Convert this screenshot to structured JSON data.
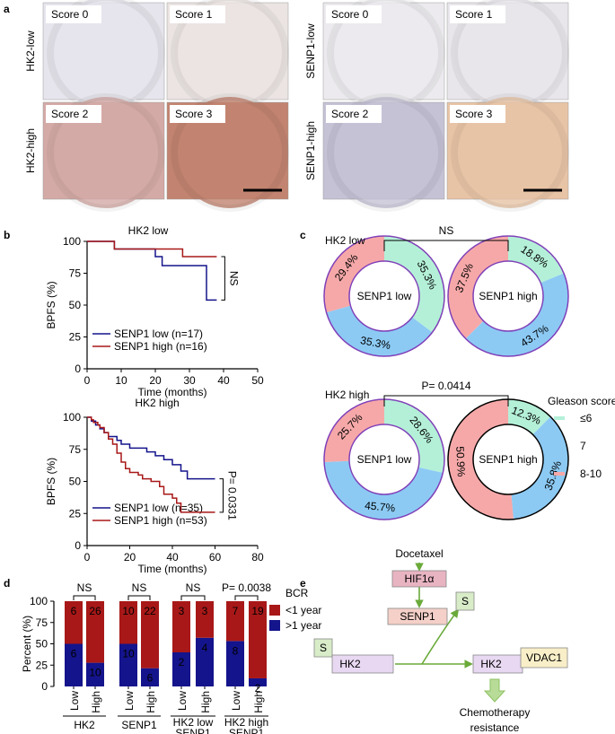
{
  "panel_labels": [
    "a",
    "b",
    "c",
    "d",
    "e"
  ],
  "panel_a": {
    "groups": [
      {
        "row_labels": [
          "HK2-low",
          "HK2-high"
        ],
        "tiles": [
          "Score 0",
          "Score 1",
          "Score 2",
          "Score 3"
        ]
      },
      {
        "row_labels": [
          "SENP1-low",
          "SENP1-high"
        ],
        "tiles": [
          "Score 0",
          "Score 1",
          "Score 2",
          "Score 3"
        ]
      }
    ]
  },
  "chart_data": [
    {
      "type": "line",
      "step": true,
      "title": "HK2 low",
      "x_label": "Time (months)",
      "y_label": "BPFS (%)",
      "xlim": [
        0,
        50
      ],
      "xticks": [
        0,
        10,
        20,
        30,
        40,
        50
      ],
      "ylim": [
        0,
        100
      ],
      "yticks": [
        0,
        25,
        50,
        75,
        100
      ],
      "annotation": "NS",
      "series": [
        {
          "name": "SENP1 low (n=17)",
          "color": "#14148c",
          "x": [
            0,
            8,
            20,
            22,
            35,
            38
          ],
          "values": [
            100,
            94,
            88,
            81,
            54,
            54
          ]
        },
        {
          "name": "SENP1 high (n=16)",
          "color": "#a81818",
          "x": [
            0,
            8,
            28,
            38
          ],
          "values": [
            100,
            94,
            88,
            88
          ]
        }
      ]
    },
    {
      "type": "line",
      "step": true,
      "title": "HK2 high",
      "x_label": "Time (months)",
      "y_label": "BPFS (%)",
      "xlim": [
        0,
        80
      ],
      "xticks": [
        0,
        20,
        40,
        60,
        80
      ],
      "ylim": [
        0,
        100
      ],
      "yticks": [
        0,
        25,
        50,
        75,
        100
      ],
      "annotation": "P= 0.0331",
      "series": [
        {
          "name": "SENP1 low (n=35)",
          "color": "#14148c",
          "x": [
            0,
            2,
            4,
            6,
            8,
            10,
            14,
            16,
            20,
            28,
            32,
            36,
            40,
            44,
            47,
            60
          ],
          "values": [
            100,
            97,
            94,
            91,
            88,
            85,
            82,
            79,
            76,
            73,
            70,
            67,
            63,
            58,
            52,
            52
          ]
        },
        {
          "name": "SENP1 high (n=53)",
          "color": "#a81818",
          "x": [
            0,
            2,
            3,
            5,
            6,
            8,
            10,
            12,
            14,
            16,
            18,
            20,
            24,
            26,
            30,
            34,
            36,
            40,
            42,
            44,
            60
          ],
          "values": [
            100,
            98,
            96,
            94,
            92,
            88,
            83,
            79,
            72,
            65,
            60,
            57,
            55,
            52,
            50,
            46,
            40,
            37,
            33,
            26,
            26
          ]
        }
      ]
    },
    {
      "type": "donut",
      "row_labels": [
        "HK2 low",
        "HK2 high"
      ],
      "annotations": [
        "NS",
        "P= 0.0414"
      ],
      "legend_title": "Gleason score",
      "categories": [
        "≤6",
        "7",
        "8-10"
      ],
      "colors": [
        "#b4f0d8",
        "#8ccaf4",
        "#f6a8a8"
      ],
      "pies": [
        {
          "center_label": "SENP1 low",
          "ring_color": "#8040b8",
          "values": [
            35.3,
            35.3,
            29.4
          ],
          "value_labels": [
            "35.3%",
            "35.3%",
            "29.4%"
          ]
        },
        {
          "center_label": "SENP1 high",
          "ring_color": "#8040b8",
          "values": [
            18.8,
            43.7,
            37.5
          ],
          "value_labels": [
            "18.8%",
            "43.7%",
            "37.5%"
          ]
        },
        {
          "center_label": "SENP1 low",
          "ring_color": "#8040b8",
          "values": [
            28.6,
            45.7,
            25.7
          ],
          "value_labels": [
            "28.6%",
            "45.7%",
            "25.7%"
          ]
        },
        {
          "center_label": "SENP1 high",
          "ring_color": "#000000",
          "values": [
            12.3,
            35.8,
            50.9
          ],
          "value_labels": [
            "12.3%",
            "35.8%",
            "50.9%"
          ]
        }
      ]
    },
    {
      "type": "stacked_bar",
      "y_label": "Percent (%)",
      "ylim": [
        0,
        100
      ],
      "yticks": [
        0,
        25,
        50,
        75,
        100
      ],
      "categories": [
        "Low",
        "High",
        "Low",
        "High",
        "Low",
        "High",
        "Low",
        "High"
      ],
      "groups": [
        [
          "HK2"
        ],
        [
          "SENP1"
        ],
        [
          "HK2 low",
          "SENP1"
        ],
        [
          "HK2 high",
          "SENP1"
        ]
      ],
      "annotations": [
        "NS",
        "NS",
        "NS",
        "P= 0.0038"
      ],
      "legend_title": "BCR",
      "series": [
        {
          "name": ">1 year",
          "color": "#14148c",
          "values": [
            50,
            27.8,
            50,
            21.4,
            40,
            57.1,
            53.3,
            9.5
          ],
          "segment_counts": [
            6,
            10,
            10,
            6,
            2,
            4,
            8,
            2
          ]
        },
        {
          "name": "<1 year",
          "color": "#a81818",
          "values": [
            50,
            72.2,
            50,
            78.6,
            60,
            42.9,
            46.7,
            90.5
          ],
          "segment_counts": [
            6,
            26,
            10,
            22,
            3,
            3,
            7,
            19
          ]
        }
      ]
    }
  ],
  "panel_e": {
    "drug": "Docetaxel",
    "hif": "HIF1α",
    "senp1": "SENP1",
    "s_left": "S",
    "s_right": "S",
    "hk2_left": "HK2",
    "hk2_right": "HK2",
    "vdac1": "VDAC1",
    "outcome": [
      "Chemotherapy",
      "resistance"
    ]
  }
}
